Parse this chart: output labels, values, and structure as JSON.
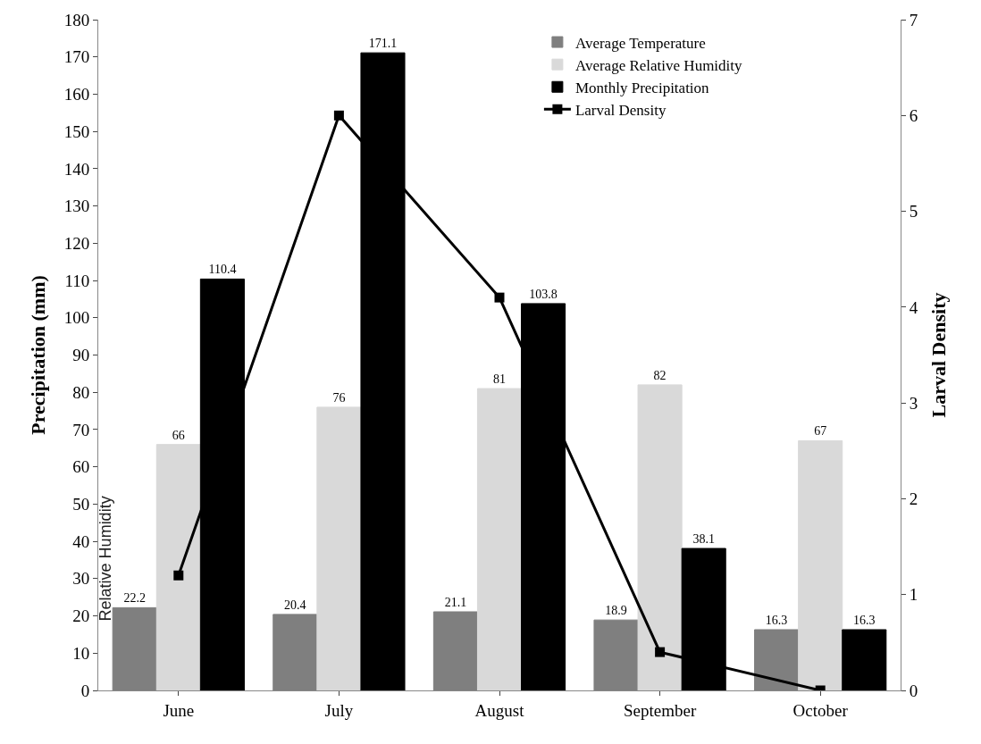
{
  "chart_data": {
    "type": "bar",
    "categories": [
      "June",
      "July",
      "August",
      "September",
      "October"
    ],
    "ylabel": "Precipitation (mm)",
    "y2label": "Larval Density",
    "ylim": [
      0,
      180
    ],
    "yticks": [
      0,
      10,
      20,
      30,
      40,
      50,
      60,
      70,
      80,
      90,
      100,
      110,
      120,
      130,
      140,
      150,
      160,
      170,
      180
    ],
    "y2lim": [
      0,
      7
    ],
    "y2ticks": [
      0,
      1,
      2,
      3,
      4,
      5,
      6,
      7
    ],
    "series": [
      {
        "name": "Average Temperature",
        "color": "#7f7f7f",
        "values": [
          22.2,
          20.4,
          21.1,
          18.9,
          16.3
        ],
        "value_labels": [
          "22.2",
          "20.4",
          "21.1",
          "18.9",
          "16.3"
        ]
      },
      {
        "name": "Average Relative Humidity",
        "color": "#d9d9d9",
        "values": [
          66,
          76,
          81,
          82,
          67
        ],
        "value_labels": [
          "66",
          "76",
          "81",
          "82",
          "67"
        ]
      },
      {
        "name": "Monthly Precipitation",
        "color": "#000000",
        "values": [
          110.4,
          171.1,
          103.8,
          38.1,
          16.3
        ],
        "value_labels": [
          "110.4",
          "171.1",
          "103.8",
          "38.1",
          "16.3"
        ]
      },
      {
        "name": "Larval Density",
        "color": "#000000",
        "type": "line",
        "axis": "y2",
        "marker": "square",
        "values": [
          1.2,
          6.0,
          4.1,
          0.4,
          0.0
        ]
      }
    ],
    "annotations": [
      "Relative Humidity"
    ],
    "legend": "top right"
  }
}
